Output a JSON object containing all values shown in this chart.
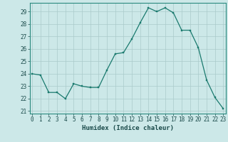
{
  "x": [
    0,
    1,
    2,
    3,
    4,
    5,
    6,
    7,
    8,
    9,
    10,
    11,
    12,
    13,
    14,
    15,
    16,
    17,
    18,
    19,
    20,
    21,
    22,
    23
  ],
  "y": [
    24.0,
    23.9,
    22.5,
    22.5,
    22.0,
    23.2,
    23.0,
    22.9,
    22.9,
    24.3,
    25.6,
    25.7,
    26.8,
    28.1,
    29.3,
    29.0,
    29.3,
    28.9,
    27.5,
    27.5,
    26.1,
    23.5,
    22.1,
    21.2
  ],
  "line_color": "#1a7a6e",
  "marker_color": "#1a7a6e",
  "bg_color": "#cce8e8",
  "grid_major_color": "#aacaca",
  "xlabel": "Humidex (Indice chaleur)",
  "ylim_min": 20.8,
  "ylim_max": 29.7,
  "xlim_min": -0.3,
  "xlim_max": 23.3,
  "yticks": [
    21,
    22,
    23,
    24,
    25,
    26,
    27,
    28,
    29
  ],
  "xticks": [
    0,
    1,
    2,
    3,
    4,
    5,
    6,
    7,
    8,
    9,
    10,
    11,
    12,
    13,
    14,
    15,
    16,
    17,
    18,
    19,
    20,
    21,
    22,
    23
  ],
  "tick_fontsize": 5.5,
  "label_fontsize": 6.5,
  "line_width": 0.9,
  "marker_size": 2.0
}
